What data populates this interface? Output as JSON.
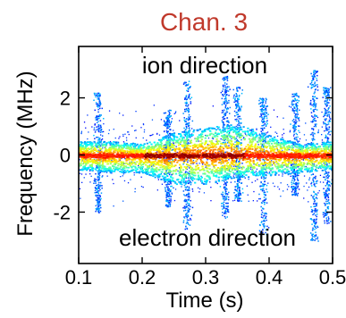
{
  "chart_data": {
    "type": "heatmap",
    "title": "Chan. 3",
    "title_color": "#c0392b",
    "xlabel": "Time (s)",
    "ylabel": "Frequency (MHz)",
    "xlim": [
      0.1,
      0.5
    ],
    "ylim": [
      -3.8,
      3.8
    ],
    "x_ticks": [
      0.1,
      0.2,
      0.3,
      0.4,
      0.5
    ],
    "x_tick_labels": [
      "0.1",
      "0.2",
      "0.3",
      "0.4",
      "0.5"
    ],
    "y_ticks": [
      2,
      0,
      -2
    ],
    "y_tick_labels": [
      "2",
      "0",
      "-2"
    ],
    "grid": false,
    "colormap": "jet",
    "annotations": [
      {
        "text": "ion direction"
      },
      {
        "text": "electron direction"
      }
    ],
    "bursts": [
      {
        "time": 0.13,
        "upper_extent": 2.2,
        "lower_extent": -2.0
      },
      {
        "time": 0.24,
        "upper_extent": 1.6,
        "lower_extent": -1.8
      },
      {
        "time": 0.27,
        "upper_extent": 2.6,
        "lower_extent": -2.6
      },
      {
        "time": 0.33,
        "upper_extent": 2.8,
        "lower_extent": -2.2
      },
      {
        "time": 0.35,
        "upper_extent": 2.4,
        "lower_extent": -1.6
      },
      {
        "time": 0.39,
        "upper_extent": 2.0,
        "lower_extent": -2.8
      },
      {
        "time": 0.44,
        "upper_extent": 2.2,
        "lower_extent": -1.4
      },
      {
        "time": 0.47,
        "upper_extent": 3.0,
        "lower_extent": -3.0
      },
      {
        "time": 0.49,
        "upper_extent": 2.4,
        "lower_extent": -2.4
      }
    ],
    "core_band": {
      "times": [
        0.1,
        0.15,
        0.2,
        0.25,
        0.3,
        0.35,
        0.4,
        0.45,
        0.5
      ],
      "upper_edge": [
        0.5,
        0.5,
        0.4,
        0.8,
        1.0,
        1.1,
        0.7,
        0.4,
        0.5
      ],
      "lower_edge": [
        -0.5,
        -0.6,
        -0.6,
        -1.0,
        -1.0,
        -0.8,
        -0.7,
        -0.6,
        -0.5
      ]
    }
  }
}
